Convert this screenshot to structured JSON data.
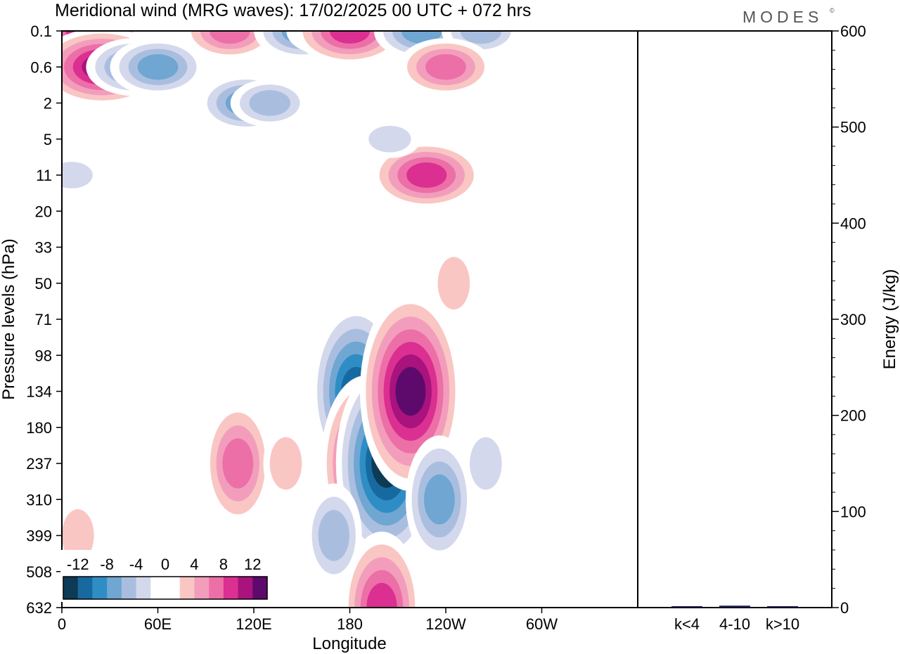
{
  "chart_data": [
    {
      "type": "heatmap",
      "title": "Meridional wind (MRG waves):  17/02/2025  00 UTC  + 072 hrs",
      "brand": "MODES",
      "brand_mark": "©",
      "xlabel": "Longitude",
      "ylabel": "Pressure levels (hPa)",
      "x_ticks": [
        "0",
        "60E",
        "120E",
        "180",
        "120W",
        "60W"
      ],
      "y_ticks": [
        "0.1",
        "0.6",
        "2",
        "5",
        "11",
        "20",
        "33",
        "50",
        "71",
        "98",
        "134",
        "180",
        "237",
        "310",
        "399",
        "508",
        "632"
      ],
      "colorbar": {
        "labels": [
          "-12",
          "-8",
          "-4",
          "0",
          "4",
          "8",
          "12"
        ],
        "colors": [
          "#0d3a55",
          "#176aa0",
          "#2f8dc6",
          "#6fa6d2",
          "#a9bedf",
          "#d3d8ec",
          "#ffffff",
          "#ffffff",
          "#f9c6c4",
          "#f39dbc",
          "#ec6fa8",
          "#db2f91",
          "#a8137d",
          "#5e0a6d"
        ]
      },
      "blobs": [
        {
          "lon": 15,
          "p": "0.1",
          "v": 11
        },
        {
          "lon": 25,
          "p": "0.6",
          "v": 12
        },
        {
          "lon": 45,
          "p": "0.6",
          "v": -9
        },
        {
          "lon": 60,
          "p": "0.6",
          "v": -8
        },
        {
          "lon": 105,
          "p": "0.1",
          "v": 8
        },
        {
          "lon": 150,
          "p": "0.1",
          "v": -9
        },
        {
          "lon": 165,
          "p": "0.1",
          "v": -6
        },
        {
          "lon": 115,
          "p": "2",
          "v": -8
        },
        {
          "lon": 130,
          "p": "2",
          "v": -7
        },
        {
          "lon": 180,
          "p": "0.1",
          "v": 10
        },
        {
          "lon": 225,
          "p": "0.1",
          "v": -8
        },
        {
          "lon": 262,
          "p": "0.1",
          "v": -7
        },
        {
          "lon": 240,
          "p": "0.6",
          "v": 8
        },
        {
          "lon": 228,
          "p": "11",
          "v": 11
        },
        {
          "lon": 205,
          "p": "5",
          "v": -4
        },
        {
          "lon": 6,
          "p": "11",
          "v": -5
        },
        {
          "lon": 245,
          "p": "50",
          "v": 4
        },
        {
          "lon": 165,
          "p": "20",
          "v": 3
        },
        {
          "lon": 208,
          "p": "33",
          "v": -3
        },
        {
          "lon": 184,
          "p": "134",
          "v": -13
        },
        {
          "lon": 190,
          "p": "237",
          "v": 13
        },
        {
          "lon": 203,
          "p": "237",
          "v": -14
        },
        {
          "lon": 218,
          "p": "134",
          "v": 15
        },
        {
          "lon": 236,
          "p": "310",
          "v": -8
        },
        {
          "lon": 110,
          "p": "237",
          "v": 9
        },
        {
          "lon": 140,
          "p": "237",
          "v": 5
        },
        {
          "lon": 170,
          "p": "399",
          "v": -7
        },
        {
          "lon": 10,
          "p": "399",
          "v": 4
        },
        {
          "lon": 265,
          "p": "237",
          "v": -4
        },
        {
          "lon": 30,
          "p": "180",
          "v": 3
        },
        {
          "lon": 200,
          "p": "632",
          "v": 10
        }
      ]
    },
    {
      "type": "bar",
      "categories": [
        "k<4",
        "4-10",
        "k>10"
      ],
      "values": [
        1,
        2,
        0
      ],
      "ylabel": "Energy (J/kg)",
      "ylim": [
        0,
        600
      ],
      "y_ticks": [
        "0",
        "100",
        "200",
        "300",
        "400",
        "500",
        "600"
      ],
      "bar_color": "#1a1a4a"
    }
  ]
}
